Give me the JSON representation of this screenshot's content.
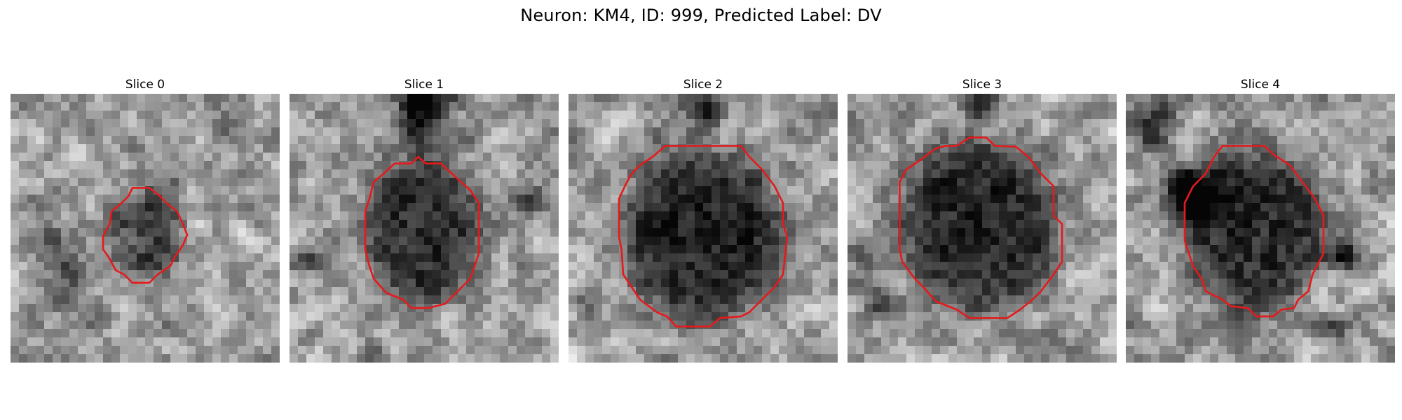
{
  "figure": {
    "title": "Neuron: KM4, ID: 999, Predicted Label: DV"
  },
  "panels": [
    {
      "title": "Slice 0",
      "contour_color": "#e41a1c"
    },
    {
      "title": "Slice 1",
      "contour_color": "#e41a1c"
    },
    {
      "title": "Slice 2",
      "contour_color": "#e41a1c"
    },
    {
      "title": "Slice 3",
      "contour_color": "#e41a1c"
    },
    {
      "title": "Slice 4",
      "contour_color": "#e41a1c"
    }
  ]
}
